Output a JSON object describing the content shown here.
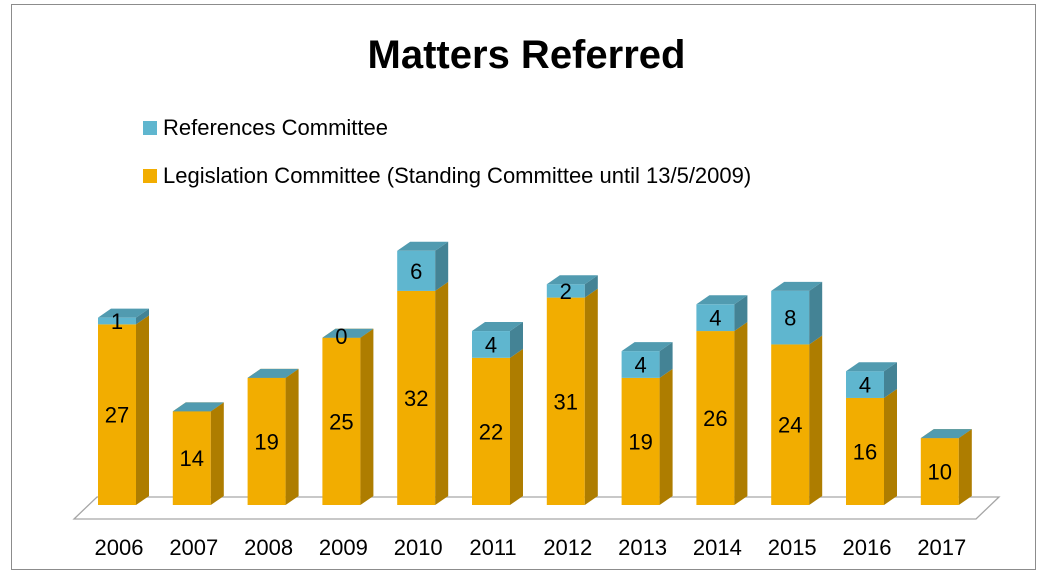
{
  "chart_data": {
    "type": "bar",
    "stacked": true,
    "title": "Matters Referred",
    "categories": [
      "2006",
      "2007",
      "2008",
      "2009",
      "2010",
      "2011",
      "2012",
      "2013",
      "2014",
      "2015",
      "2016",
      "2017"
    ],
    "series": [
      {
        "name": "Legislation Committee (Standing Committee until 13/5/2009)",
        "values": [
          27,
          14,
          19,
          25,
          32,
          22,
          31,
          19,
          26,
          24,
          16,
          10
        ],
        "labels": [
          "27",
          "14",
          "19",
          "25",
          "32",
          "22",
          "31",
          "19",
          "26",
          "24",
          "16",
          "10"
        ],
        "color": "#f2ad00"
      },
      {
        "name": "References Committee",
        "values": [
          1,
          0,
          0,
          0,
          6,
          4,
          2,
          4,
          4,
          8,
          4,
          0
        ],
        "labels": [
          "1",
          "",
          "",
          "0",
          "6",
          "4",
          "2",
          "4",
          "4",
          "8",
          "4",
          ""
        ],
        "color": "#5fb6cf"
      }
    ],
    "legend_order": [
      "References Committee",
      "Legislation Committee (Standing Committee until 13/5/2009)"
    ],
    "legend_position": "top-left",
    "grid": false,
    "three_d": true
  }
}
